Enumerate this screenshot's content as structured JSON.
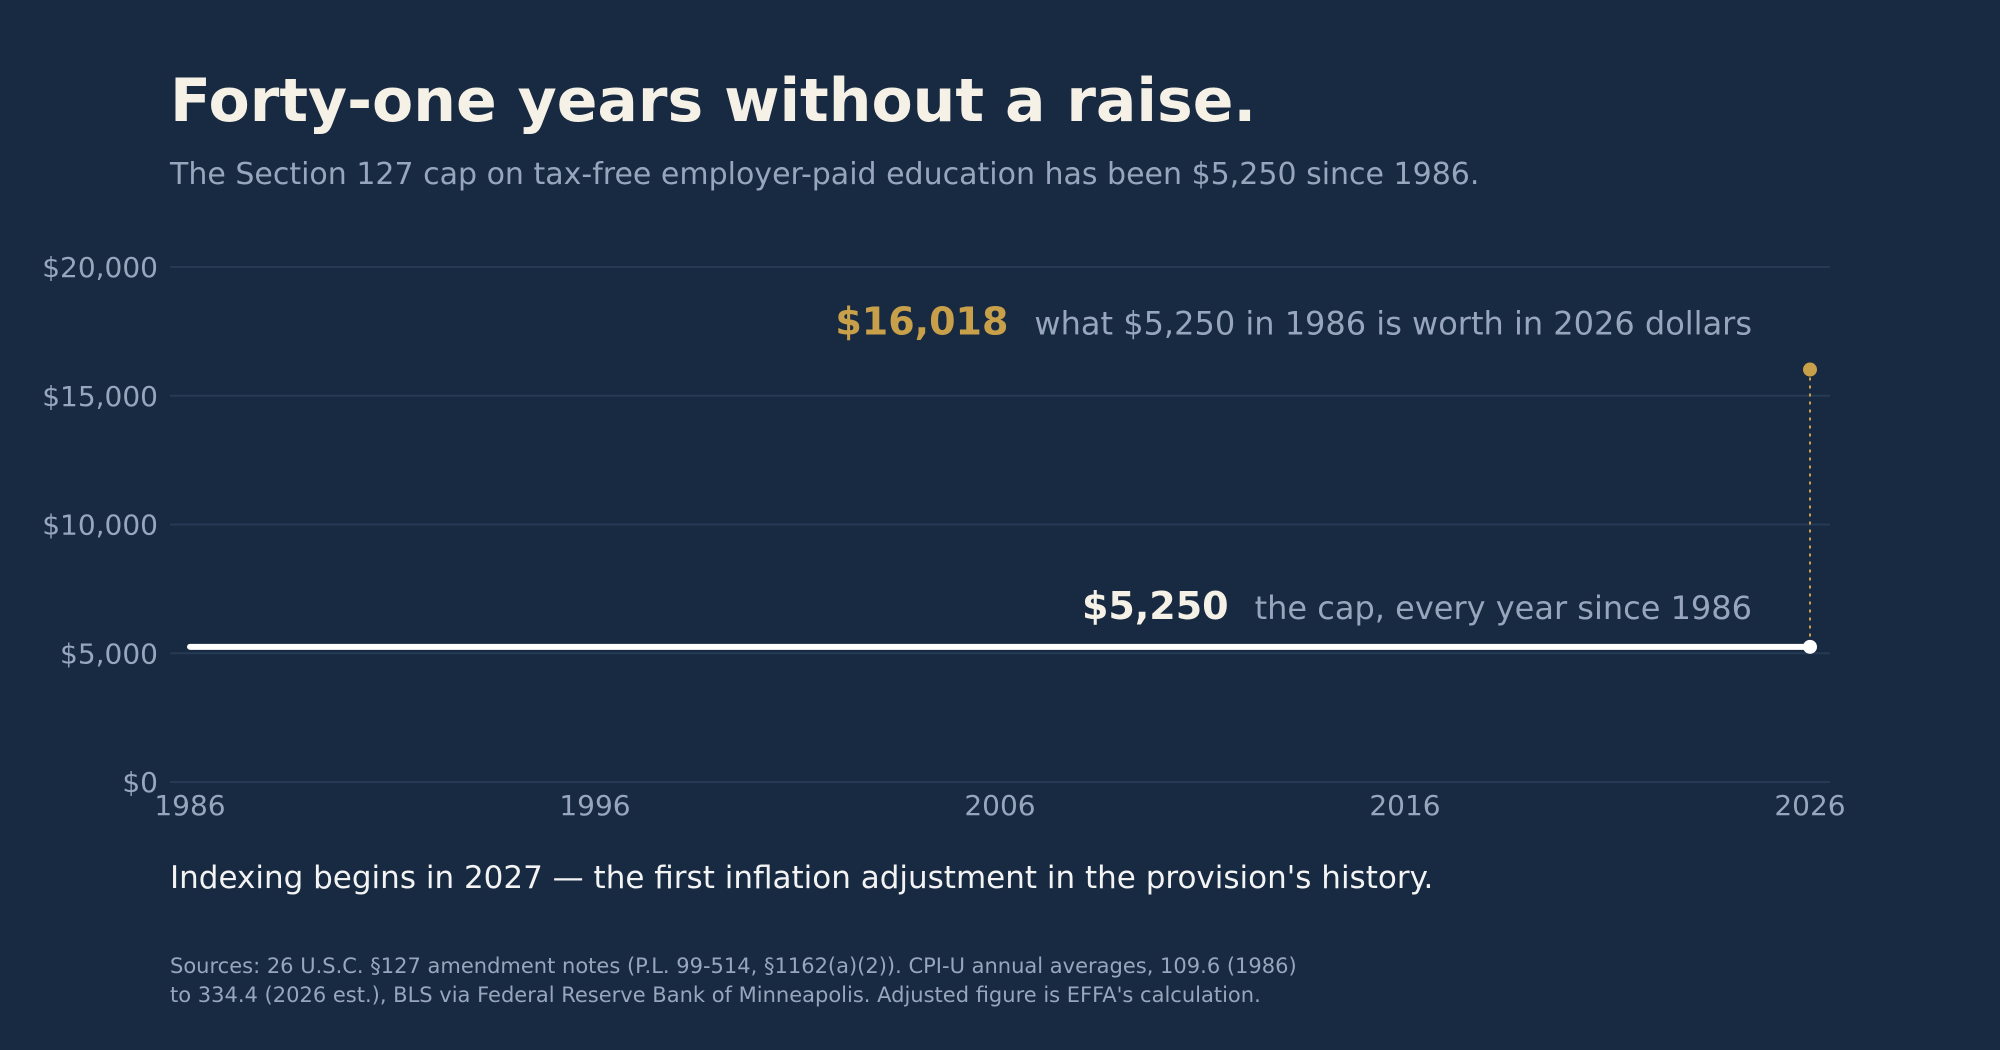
{
  "colors": {
    "background": "#172a41",
    "grid": "#263a55",
    "text_muted": "#97a6bd",
    "cap_line": "#ffffff",
    "adjusted_accent": "#c9a04a"
  },
  "chart_data": {
    "type": "line",
    "title": "Forty-one years without a raise.",
    "subtitle": "The Section 127 cap on tax-free employer-paid education has been $5,250 since 1986.",
    "x_ticks": [
      "1986",
      "1996",
      "2006",
      "2016",
      "2026"
    ],
    "y_ticks": [
      "$0",
      "$5,000",
      "$10,000",
      "$15,000",
      "$20,000"
    ],
    "xlim": [
      1986,
      2026
    ],
    "ylim": [
      0,
      20000
    ],
    "grid": true,
    "series": [
      {
        "x": [
          1986,
          2026
        ],
        "values": [
          5250,
          5250
        ]
      }
    ],
    "adjusted_point": {
      "x": 2026,
      "value": 16018
    },
    "annotations": {
      "adjusted_value": "$16,018",
      "adjusted_note": "what $5,250 in 1986 is worth in 2026 dollars",
      "cap_value": "$5,250",
      "cap_note": "the cap, every year since 1986"
    }
  },
  "caption": "Indexing begins in 2027 — the first inflation adjustment in the provision's history.",
  "sources": [
    "Sources: 26 U.S.C. §127 amendment notes (P.L. 99-514, §1162(a)(2)). CPI-U annual averages, 109.6 (1986)",
    "to 334.4 (2026 est.), BLS via Federal Reserve Bank of Minneapolis. Adjusted figure is EFFA's calculation."
  ]
}
